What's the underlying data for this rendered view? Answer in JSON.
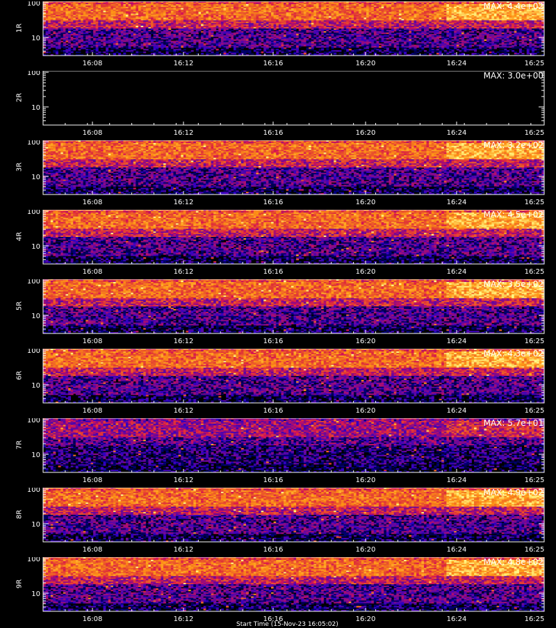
{
  "chart_data": [
    {
      "type": "heatmap",
      "panel_label": "1R",
      "max_label": "MAX: 4.4e+02",
      "has_data": true,
      "y_ticks": [
        "100",
        "10"
      ],
      "y_range": [
        3,
        110
      ],
      "y_scale": "log",
      "x_ticks": [
        "16:08",
        "16:12",
        "16:16",
        "16:20",
        "16:24",
        "16:25"
      ],
      "x_range_minutes": [
        6.0,
        28.6
      ]
    },
    {
      "type": "heatmap",
      "panel_label": "2R",
      "max_label": "MAX: 3.0e+00",
      "has_data": false,
      "y_ticks": [
        "100",
        "10"
      ],
      "y_range": [
        3,
        110
      ],
      "y_scale": "log",
      "x_ticks": [
        "16:08",
        "16:12",
        "16:16",
        "16:20",
        "16:24",
        "16:25"
      ],
      "x_range_minutes": [
        6.0,
        28.6
      ]
    },
    {
      "type": "heatmap",
      "panel_label": "3R",
      "max_label": "MAX: 3.2e+02",
      "has_data": true,
      "y_ticks": [
        "100",
        "10"
      ],
      "y_range": [
        3,
        110
      ],
      "y_scale": "log",
      "x_ticks": [
        "16:08",
        "16:12",
        "16:16",
        "16:20",
        "16:24",
        "16:25"
      ],
      "x_range_minutes": [
        6.0,
        28.6
      ]
    },
    {
      "type": "heatmap",
      "panel_label": "4R",
      "max_label": "MAX: 4.5e+02",
      "has_data": true,
      "y_ticks": [
        "100",
        "10"
      ],
      "y_range": [
        3,
        110
      ],
      "y_scale": "log",
      "x_ticks": [
        "16:08",
        "16:12",
        "16:16",
        "16:20",
        "16:24",
        "16:25"
      ],
      "x_range_minutes": [
        6.0,
        28.6
      ]
    },
    {
      "type": "heatmap",
      "panel_label": "5R",
      "max_label": "MAX: 3.5e+02",
      "has_data": true,
      "y_ticks": [
        "100",
        "10"
      ],
      "y_range": [
        3,
        110
      ],
      "y_scale": "log",
      "x_ticks": [
        "16:08",
        "16:12",
        "16:16",
        "16:20",
        "16:24",
        "16:25"
      ],
      "x_range_minutes": [
        6.0,
        28.6
      ]
    },
    {
      "type": "heatmap",
      "panel_label": "6R",
      "max_label": "MAX: 4.3e+02",
      "has_data": true,
      "y_ticks": [
        "100",
        "10"
      ],
      "y_range": [
        3,
        110
      ],
      "y_scale": "log",
      "x_ticks": [
        "16:08",
        "16:12",
        "16:16",
        "16:20",
        "16:24",
        "16:25"
      ],
      "x_range_minutes": [
        6.0,
        28.6
      ]
    },
    {
      "type": "heatmap",
      "panel_label": "7R",
      "max_label": "MAX: 5.7e+01",
      "has_data": true,
      "y_ticks": [
        "100",
        "10"
      ],
      "y_range": [
        3,
        110
      ],
      "y_scale": "log",
      "x_ticks": [
        "16:08",
        "16:12",
        "16:16",
        "16:20",
        "16:24",
        "16:25"
      ],
      "x_range_minutes": [
        6.0,
        28.6
      ]
    },
    {
      "type": "heatmap",
      "panel_label": "8R",
      "max_label": "MAX: 4.9e+02",
      "has_data": true,
      "y_ticks": [
        "100",
        "10"
      ],
      "y_range": [
        3,
        110
      ],
      "y_scale": "log",
      "x_ticks": [
        "16:08",
        "16:12",
        "16:16",
        "16:20",
        "16:24",
        "16:25"
      ],
      "x_range_minutes": [
        6.0,
        28.6
      ]
    },
    {
      "type": "heatmap",
      "panel_label": "9R",
      "max_label": "MAX: 4.8e+02",
      "has_data": true,
      "y_ticks": [
        "100",
        "10"
      ],
      "y_range": [
        3,
        110
      ],
      "y_scale": "log",
      "x_ticks": [
        "16:08",
        "16:12",
        "16:16",
        "16:20",
        "16:24",
        "16:25"
      ],
      "x_range_minutes": [
        6.0,
        28.6
      ]
    }
  ],
  "colors": {
    "background": "#000000",
    "axis": "#ffffff",
    "low": "#1a1aa0",
    "mid": "#e02020",
    "high": "#ffff60"
  },
  "footer": {
    "start_time_label": "Start Time (15-Nov-23 16:05:02)"
  }
}
